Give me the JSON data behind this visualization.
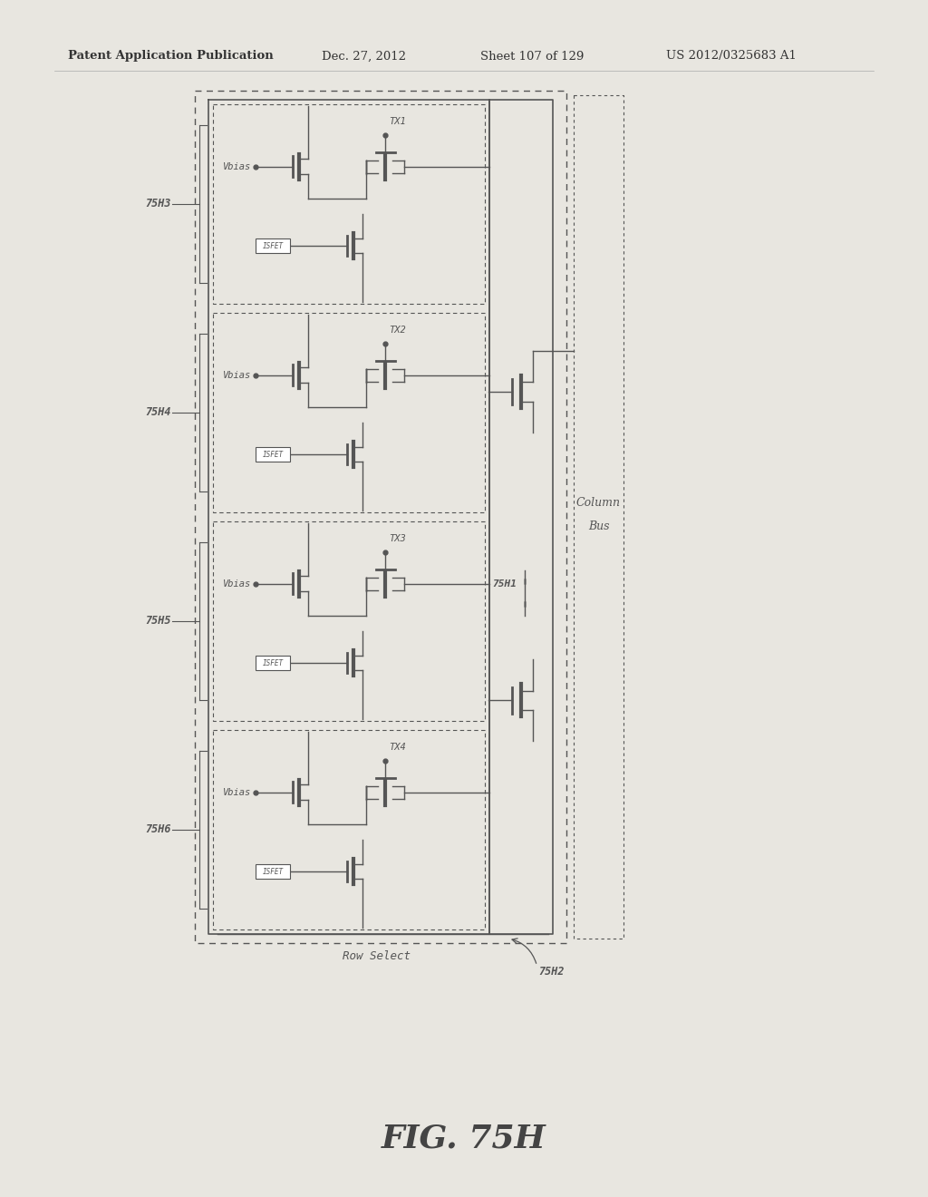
{
  "bg_color": "#e8e6e0",
  "white": "#f5f5f2",
  "diagram_color": "#555555",
  "dark": "#333333",
  "header_text": "Patent Application Publication",
  "header_date": "Dec. 27, 2012",
  "header_sheet": "Sheet 107 of 129",
  "header_patent": "US 2012/0325683 A1",
  "figure_label": "FIG. 75H",
  "row_select_label": "Row Select",
  "column_bus_label": "Column\nBus",
  "labels_left": [
    "75H3",
    "75H4",
    "75H5",
    "75H6"
  ],
  "tx_labels": [
    "TX1",
    "TX2",
    "TX3",
    "TX4"
  ],
  "vbias_label": "Vbias",
  "isfet_label": "ISFET",
  "label_75h1": "75H1",
  "label_75h2": "75H2"
}
